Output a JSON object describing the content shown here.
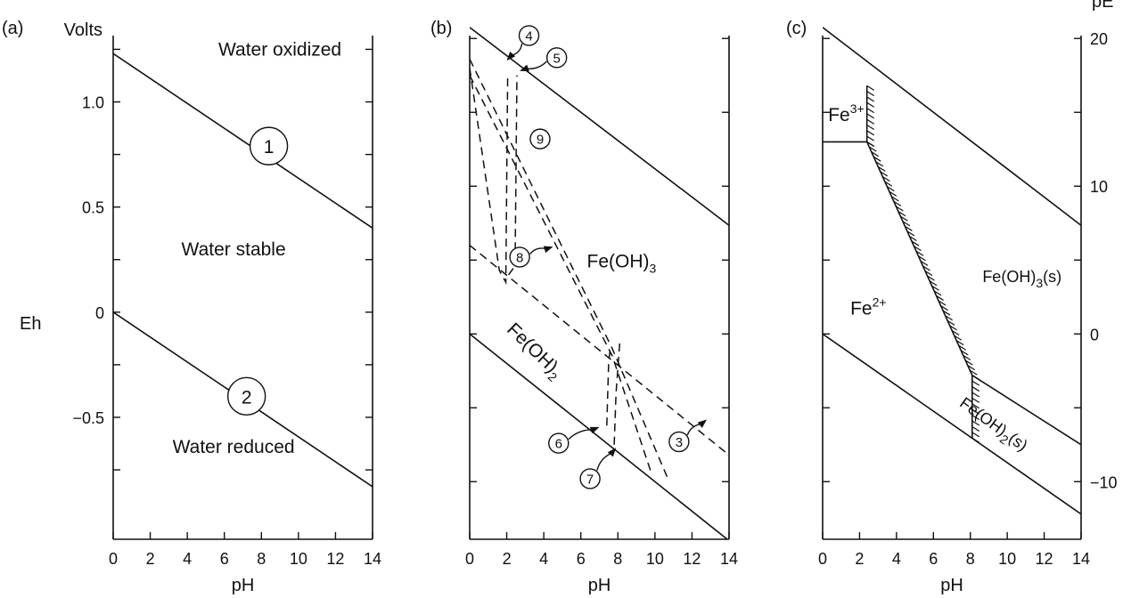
{
  "chart_data": [
    {
      "type": "line",
      "panel_label": "(a)",
      "xlabel": "pH",
      "ylabel": "Eh",
      "y_unit_label": "Volts",
      "xlim": [
        0,
        14
      ],
      "ylim": [
        -1.08,
        1.4
      ],
      "x_ticks": [
        0,
        2,
        4,
        6,
        8,
        10,
        12,
        14
      ],
      "x_tick_labels": [
        "0",
        "2",
        "4",
        "6",
        "8",
        "10",
        "12",
        "14"
      ],
      "y_ticks": [
        -0.75,
        -0.5,
        -0.25,
        0,
        0.25,
        0.5,
        0.75,
        1.0,
        1.25
      ],
      "y_tick_labels": [
        {
          "value": 1.0,
          "text": "1.0"
        },
        {
          "value": 0.5,
          "text": "0.5"
        },
        {
          "value": 0,
          "text": "0"
        },
        {
          "value": -0.5,
          "text": "−0.5"
        }
      ],
      "series": [
        {
          "marker": "1",
          "style": "solid",
          "x": [
            0,
            14
          ],
          "y": [
            1.23,
            0.4
          ],
          "label_at": {
            "x": 8.4,
            "y": 0.79
          }
        },
        {
          "marker": "2",
          "style": "solid",
          "x": [
            0,
            14
          ],
          "y": [
            0.0,
            -0.83
          ],
          "label_at": {
            "x": 7.2,
            "y": -0.4
          }
        }
      ],
      "regions": [
        {
          "text": "Water oxidized",
          "x": 9.0,
          "y": 1.22
        },
        {
          "text": "Water stable",
          "x": 6.5,
          "y": 0.27
        },
        {
          "text": "Water reduced",
          "x": 6.5,
          "y": -0.67
        }
      ]
    },
    {
      "type": "line",
      "panel_label": "(b)",
      "xlabel": "pH",
      "xlim": [
        0,
        14
      ],
      "ylim": [
        -13.9,
        21.4
      ],
      "x_ticks": [
        0,
        2,
        4,
        6,
        8,
        10,
        12,
        14
      ],
      "x_tick_labels": [
        "0",
        "2",
        "4",
        "6",
        "8",
        "10",
        "12",
        "14"
      ],
      "y_ticks": [
        -10,
        -5,
        0,
        5,
        10,
        15,
        20
      ],
      "series": [
        {
          "style": "solid",
          "x": [
            0,
            14
          ],
          "y": [
            20.75,
            7.35
          ]
        },
        {
          "style": "solid",
          "x": [
            0,
            14
          ],
          "y": [
            0.0,
            -14.0
          ]
        },
        {
          "marker": "3",
          "style": "dashed",
          "x": [
            0,
            14
          ],
          "y": [
            6.0,
            -8.2
          ]
        },
        {
          "marker": "4",
          "style": "dashed",
          "x": [
            0,
            1.6,
            1.95,
            2.05
          ],
          "y": [
            18.0,
            4.3,
            3.5,
            17.5
          ]
        },
        {
          "marker": "5",
          "style": "dashed",
          "x": [
            2.1,
            2.45,
            2.55
          ],
          "y": [
            4.0,
            4.6,
            17.5
          ]
        },
        {
          "marker": "6",
          "style": "dashed",
          "x": [
            7.4,
            7.5,
            7.6
          ],
          "y": [
            -6.2,
            -2.0,
            -0.8
          ]
        },
        {
          "marker": "7",
          "style": "dashed",
          "x": [
            7.8,
            7.9,
            8.1
          ],
          "y": [
            -7.5,
            -4.0,
            -0.6
          ]
        },
        {
          "marker": "8",
          "style": "dashed",
          "x": [
            0,
            7.7,
            10.7
          ],
          "y": [
            18.6,
            -1.0,
            -9.8
          ]
        },
        {
          "marker": "9",
          "style": "dashed",
          "x": [
            0,
            7.7,
            9.8
          ],
          "y": [
            17.5,
            -1.5,
            -9.4
          ]
        }
      ],
      "markers_at": [
        {
          "text": "4",
          "x": 3.2,
          "y": 20.2,
          "arrow_to": {
            "x": 2.0,
            "y": 18.5
          }
        },
        {
          "text": "5",
          "x": 4.7,
          "y": 18.7,
          "arrow_to": {
            "x": 2.7,
            "y": 17.8
          }
        },
        {
          "text": "9",
          "x": 3.8,
          "y": 13.2
        },
        {
          "text": "8",
          "x": 2.7,
          "y": 5.2,
          "arrow_to": {
            "x": 4.5,
            "y": 5.9
          }
        },
        {
          "text": "3",
          "x": 11.3,
          "y": -7.3,
          "arrow_to": {
            "x": 12.8,
            "y": -5.8
          }
        },
        {
          "text": "6",
          "x": 4.8,
          "y": -7.4,
          "arrow_to": {
            "x": 7.0,
            "y": -6.3
          }
        },
        {
          "text": "7",
          "x": 6.5,
          "y": -9.8,
          "arrow_to": {
            "x": 7.9,
            "y": -7.7
          }
        }
      ],
      "regions": [
        {
          "main": "Fe(OH)",
          "sub": "3",
          "tail": "",
          "x": 8.2,
          "y": 4.5,
          "rotate": 0
        },
        {
          "main": "Fe(OH)",
          "sub": "2",
          "tail": "",
          "x": 3.3,
          "y": -1.4,
          "rotate": 44
        }
      ]
    },
    {
      "type": "line",
      "panel_label": "(c)",
      "xlabel": "pH",
      "ylabel": "pE",
      "xlim": [
        0,
        14
      ],
      "ylim": [
        -13.9,
        21.4
      ],
      "x_ticks": [
        0,
        2,
        4,
        6,
        8,
        10,
        12,
        14
      ],
      "x_tick_labels": [
        "0",
        "2",
        "4",
        "6",
        "8",
        "10",
        "12",
        "14"
      ],
      "y_ticks_right": [
        -10,
        -5,
        0,
        5,
        10,
        15,
        20
      ],
      "y_tick_labels_right": [
        {
          "value": 20,
          "text": "20"
        },
        {
          "value": 10,
          "text": "10"
        },
        {
          "value": 0,
          "text": "0"
        },
        {
          "value": -10,
          "text": "−10"
        }
      ],
      "series": [
        {
          "style": "solid",
          "x": [
            0,
            14
          ],
          "y": [
            20.75,
            7.35
          ]
        },
        {
          "style": "solid",
          "x": [
            0,
            14
          ],
          "y": [
            0.0,
            -12.2
          ]
        },
        {
          "style": "solid",
          "x": [
            0,
            2.4
          ],
          "y": [
            13.0,
            13.0
          ]
        },
        {
          "style": "solid",
          "x": [
            2.4,
            2.4
          ],
          "y": [
            13.0,
            16.8
          ]
        },
        {
          "style": "solid",
          "x": [
            2.4,
            8.1
          ],
          "y": [
            13.0,
            -2.8
          ]
        },
        {
          "style": "solid",
          "x": [
            8.1,
            8.1
          ],
          "y": [
            -2.8,
            -7.05
          ]
        },
        {
          "style": "solid",
          "x": [
            8.1,
            14
          ],
          "y": [
            -2.8,
            -7.5
          ]
        }
      ],
      "hatch_segments": [
        {
          "x": [
            2.4,
            2.4
          ],
          "y": [
            13.0,
            16.8
          ],
          "side": "right"
        },
        {
          "x": [
            2.4,
            8.1
          ],
          "y": [
            13.0,
            -2.8
          ],
          "side": "right"
        },
        {
          "x": [
            8.1,
            8.1
          ],
          "y": [
            -2.8,
            -7.05
          ],
          "side": "right"
        }
      ],
      "regions": [
        {
          "main": "Fe",
          "sup": "3+",
          "x": 0.3,
          "y": 14.4
        },
        {
          "main": "Fe",
          "sup": "2+",
          "x": 1.5,
          "y": 1.3
        },
        {
          "main": "Fe(OH)",
          "sub": "3",
          "tail": "(s)",
          "x": 10.8,
          "y": 3.5,
          "rotate": 0
        },
        {
          "main": "Fe(OH)",
          "sub": "2",
          "tail": "(s)",
          "x": 9.1,
          "y": -6.4,
          "rotate": 36
        }
      ]
    }
  ]
}
